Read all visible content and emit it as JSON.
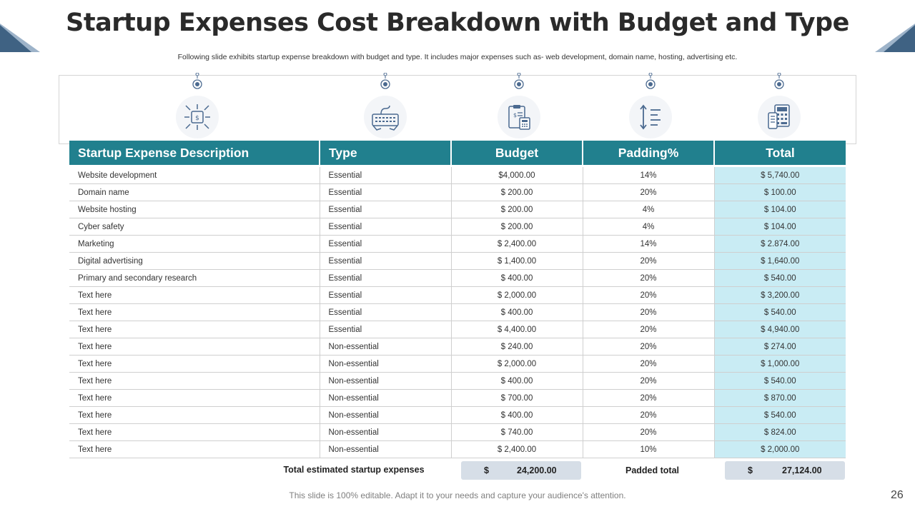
{
  "title": "Startup Expenses Cost Breakdown with Budget and Type",
  "subtitle": "Following slide exhibits startup expense breakdown with budget and type. It includes major expenses such as- web development, domain name, hosting, advertising etc.",
  "icons": [
    "web-development-icon",
    "keyboard-icon",
    "clipboard-calculator-icon",
    "list-arrows-icon",
    "calculator-phone-icon"
  ],
  "table": {
    "headers": {
      "description": "Startup Expense Description",
      "type": "Type",
      "budget": "Budget",
      "padding": "Padding%",
      "total": "Total"
    },
    "rows": [
      {
        "description": "Website development",
        "type": "Essential",
        "budget": "$4,000.00",
        "padding": "14%",
        "total": "$ 5,740.00"
      },
      {
        "description": "Domain name",
        "type": "Essential",
        "budget": "$ 200.00",
        "padding": "20%",
        "total": "$ 100.00"
      },
      {
        "description": "Website hosting",
        "type": "Essential",
        "budget": "$ 200.00",
        "padding": "4%",
        "total": "$ 104.00"
      },
      {
        "description": "Cyber safety",
        "type": "Essential",
        "budget": "$ 200.00",
        "padding": "4%",
        "total": "$ 104.00"
      },
      {
        "description": "Marketing",
        "type": "Essential",
        "budget": "$ 2,400.00",
        "padding": "14%",
        "total": "$ 2.874.00"
      },
      {
        "description": "Digital advertising",
        "type": "Essential",
        "budget": "$ 1,400.00",
        "padding": "20%",
        "total": "$ 1,640.00"
      },
      {
        "description": "Primary and secondary research",
        "type": "Essential",
        "budget": "$ 400.00",
        "padding": "20%",
        "total": "$ 540.00"
      },
      {
        "description": "Text here",
        "type": "Essential",
        "budget": "$ 2,000.00",
        "padding": "20%",
        "total": "$ 3,200.00"
      },
      {
        "description": "Text here",
        "type": "Essential",
        "budget": "$ 400.00",
        "padding": "20%",
        "total": "$ 540.00"
      },
      {
        "description": "Text here",
        "type": "Essential",
        "budget": "$ 4,400.00",
        "padding": "20%",
        "total": "$ 4,940.00"
      },
      {
        "description": "Text here",
        "type": "Non-essential",
        "budget": "$ 240.00",
        "padding": "20%",
        "total": "$ 274.00"
      },
      {
        "description": "Text here",
        "type": "Non-essential",
        "budget": "$ 2,000.00",
        "padding": "20%",
        "total": "$ 1,000.00"
      },
      {
        "description": "Text here",
        "type": "Non-essential",
        "budget": "$ 400.00",
        "padding": "20%",
        "total": "$ 540.00"
      },
      {
        "description": "Text here",
        "type": "Non-essential",
        "budget": "$ 700.00",
        "padding": "20%",
        "total": "$ 870.00"
      },
      {
        "description": "Text here",
        "type": "Non-essential",
        "budget": "$ 400.00",
        "padding": "20%",
        "total": "$ 540.00"
      },
      {
        "description": "Text here",
        "type": "Non-essential",
        "budget": "$ 740.00",
        "padding": "20%",
        "total": "$ 824.00"
      },
      {
        "description": "Text here",
        "type": "Non-essential",
        "budget": "$ 2,400.00",
        "padding": "10%",
        "total": "$ 2,000.00"
      }
    ]
  },
  "summary": {
    "total_label": "Total estimated startup  expenses",
    "budget_currency": "$",
    "budget_amount": "24,200.00",
    "padded_label": "Padded total",
    "total_currency": "$",
    "total_amount": "27,124.00"
  },
  "footer": "This slide is 100% editable. Adapt it to your needs and capture your audience's attention.",
  "page_number": "26",
  "colors": {
    "header_teal": "#21808e",
    "total_column": "#c9ecf4",
    "summary_box": "#d6dee7",
    "corner_blue": "#3f6283",
    "icon_blue": "#4b6a90"
  }
}
